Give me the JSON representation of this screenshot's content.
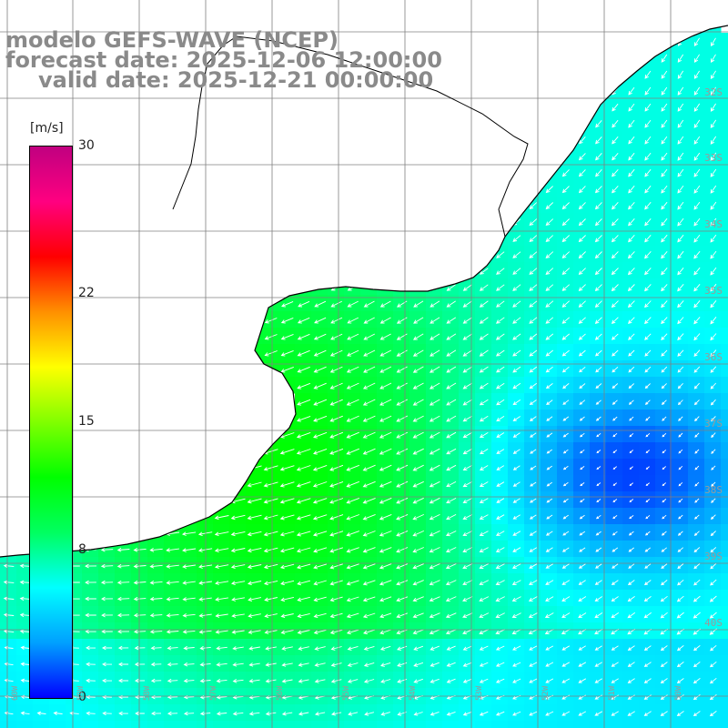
{
  "title": {
    "model": "modelo GEFS-WAVE (NCEP)",
    "forecast": "forecast date: 2025-12-06 12:00:00",
    "valid": "valid date: 2025-12-21 00:00:00"
  },
  "colorbar": {
    "unit": "[m/s]",
    "min": 0,
    "max": 30,
    "ticks": [
      "30",
      "22",
      "15",
      "8",
      "0"
    ],
    "tick_values": [
      30,
      22,
      15,
      8,
      0
    ],
    "colors": [
      "#0000ff",
      "#00a0ff",
      "#00ffff",
      "#00ff60",
      "#00ff00",
      "#80ff00",
      "#ffff00",
      "#ff9000",
      "#ff0000",
      "#ff0080",
      "#c00080"
    ]
  },
  "grid": {
    "lat_labels": [
      "32S",
      "33S",
      "34S",
      "35S",
      "36S",
      "37S",
      "38S",
      "39S",
      "40S"
    ],
    "lon_labels": [
      "60W",
      "59W",
      "58W",
      "57W",
      "56W",
      "55W",
      "54W",
      "53W",
      "52W",
      "51W",
      "50W"
    ]
  },
  "field": {
    "calm_center_speed": 1,
    "coast_max_speed": 12
  },
  "colors": {
    "land": "#ffffff",
    "coastline": "#000000",
    "grid": "#808080",
    "arrows": "#ffffff",
    "title": "#8a8a8a"
  }
}
